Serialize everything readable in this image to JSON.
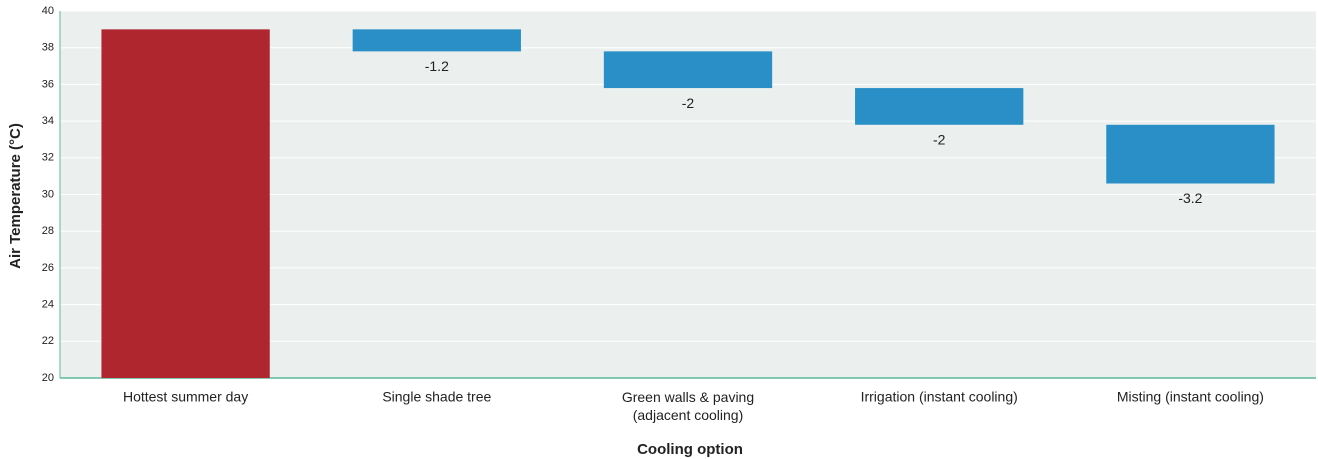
{
  "chart_data": {
    "type": "waterfall",
    "categories": [
      "Hottest summer day",
      "Single shade tree",
      "Green walls & paving\n(adjacent cooling)",
      "Irrigation (instant cooling)",
      "Misting (instant cooling)"
    ],
    "values": [
      39,
      -1.2,
      -2,
      -2,
      -3.2
    ],
    "colors": {
      "total": "#b0262f",
      "decrease": "#2a8fc6"
    },
    "xlabel": "Cooling option",
    "ylabel": "Air Temperature (°C)",
    "ylim": [
      20,
      40
    ],
    "yticks": [
      20,
      22,
      24,
      26,
      28,
      30,
      32,
      34,
      36,
      38,
      40
    ],
    "grid": true
  }
}
